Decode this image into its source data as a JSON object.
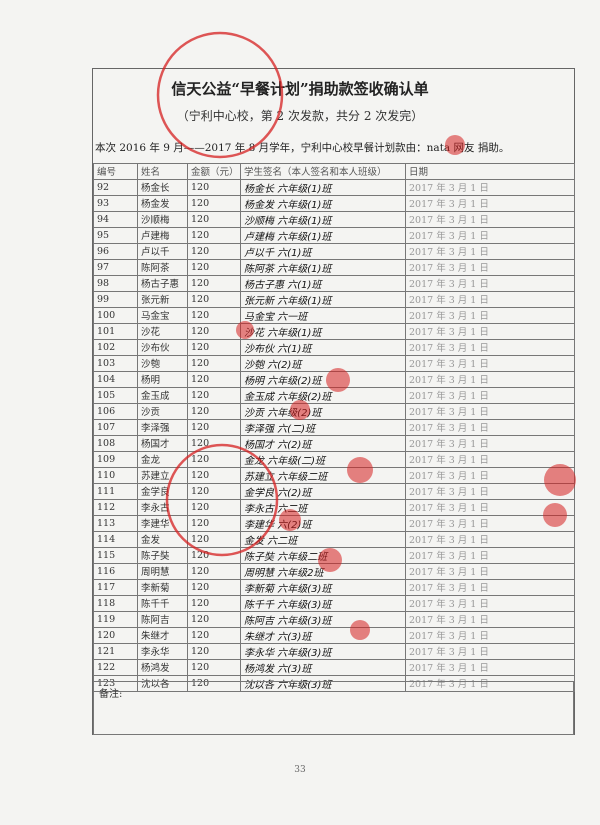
{
  "header": {
    "title": "信天公益“早餐计划”捐助款签收确认单",
    "subtitle": "（宁利中心校，第 2 次发款，共分 2 次发完）",
    "info": "本次 2016 年 9 月——2017 年 8 月学年，宁利中心校早餐计划款由：nata 网友 捐助。"
  },
  "table": {
    "columns": [
      "编号",
      "姓名",
      "金额（元）",
      "学生签名（本人签名和本人班级）",
      "日期"
    ],
    "rows": [
      [
        "92",
        "杨金长",
        "120",
        "杨金长 六年级(1)班",
        "2017 年 3 月 1 日"
      ],
      [
        "93",
        "杨金发",
        "120",
        "杨金发 六年级(1)班",
        "2017 年 3 月 1 日"
      ],
      [
        "94",
        "沙顺梅",
        "120",
        "沙顺梅 六年级(1)班",
        "2017 年 3 月 1 日"
      ],
      [
        "95",
        "卢建梅",
        "120",
        "卢建梅 六年级(1)班",
        "2017 年 3 月 1 日"
      ],
      [
        "96",
        "卢以千",
        "120",
        "卢以千 六(1)班",
        "2017 年 3 月 1 日"
      ],
      [
        "97",
        "陈阿茶",
        "120",
        "陈阿茶 六年级(1)班",
        "2017 年 3 月 1 日"
      ],
      [
        "98",
        "杨古子惠",
        "120",
        "杨古子惠 六(1)班",
        "2017 年 3 月 1 日"
      ],
      [
        "99",
        "张元新",
        "120",
        "张元新 六年级(1)班",
        "2017 年 3 月 1 日"
      ],
      [
        "100",
        "马金宝",
        "120",
        "马金宝 六一班",
        "2017 年 3 月 1 日"
      ],
      [
        "101",
        "沙花",
        "120",
        "沙花 六年级(1)班",
        "2017 年 3 月 1 日"
      ],
      [
        "102",
        "沙布伙",
        "120",
        "沙布伙 六(1)班",
        "2017 年 3 月 1 日"
      ],
      [
        "103",
        "沙匏",
        "120",
        "沙匏 六(2)班",
        "2017 年 3 月 1 日"
      ],
      [
        "104",
        "杨明",
        "120",
        "杨明 六年级(2)班",
        "2017 年 3 月 1 日"
      ],
      [
        "105",
        "金玉成",
        "120",
        "金玉成 六年级(2)班",
        "2017 年 3 月 1 日"
      ],
      [
        "106",
        "沙贡",
        "120",
        "沙贡 六年级(2)班",
        "2017 年 3 月 1 日"
      ],
      [
        "107",
        "李泽强",
        "120",
        "李泽强 六(二)班",
        "2017 年 3 月 1 日"
      ],
      [
        "108",
        "杨国才",
        "120",
        "杨国才 六(2)班",
        "2017 年 3 月 1 日"
      ],
      [
        "109",
        "金龙",
        "120",
        "金龙 六年级(二)班",
        "2017 年 3 月 1 日"
      ],
      [
        "110",
        "苏建立",
        "120",
        "苏建立 六年级二班",
        "2017 年 3 月 1 日"
      ],
      [
        "111",
        "金学良",
        "120",
        "金学良 六(2)班",
        "2017 年 3 月 1 日"
      ],
      [
        "112",
        "李永古",
        "120",
        "李永古 六二班",
        "2017 年 3 月 1 日"
      ],
      [
        "113",
        "李建华",
        "120",
        "李建华 六(2)班",
        "2017 年 3 月 1 日"
      ],
      [
        "114",
        "金发",
        "120",
        "金发 六二班",
        "2017 年 3 月 1 日"
      ],
      [
        "115",
        "陈子奘",
        "120",
        "陈子奘 六年级二班",
        "2017 年 3 月 1 日"
      ],
      [
        "116",
        "周明慧",
        "120",
        "周明慧 六年级2班",
        "2017 年 3 月 1 日"
      ],
      [
        "117",
        "李新菊",
        "120",
        "李新菊 六年级(3)班",
        "2017 年 3 月 1 日"
      ],
      [
        "118",
        "陈千千",
        "120",
        "陈千千 六年级(3)班",
        "2017 年 3 月 1 日"
      ],
      [
        "119",
        "陈阿吉",
        "120",
        "陈阿吉 六年级(3)班",
        "2017 年 3 月 1 日"
      ],
      [
        "120",
        "朱继才",
        "120",
        "朱继才 六(3)班",
        "2017 年 3 月 1 日"
      ],
      [
        "121",
        "李永华",
        "120",
        "李永华 六年级(3)班",
        "2017 年 3 月 1 日"
      ],
      [
        "122",
        "杨鸿发",
        "120",
        "杨鸿发 六(3)班",
        "2017 年 3 月 1 日"
      ],
      [
        "123",
        "沈以各",
        "120",
        "沈以各 六年级(3)班",
        "2017 年 3 月 1 日"
      ]
    ]
  },
  "footer": {
    "note": "备注:",
    "page": "33"
  }
}
